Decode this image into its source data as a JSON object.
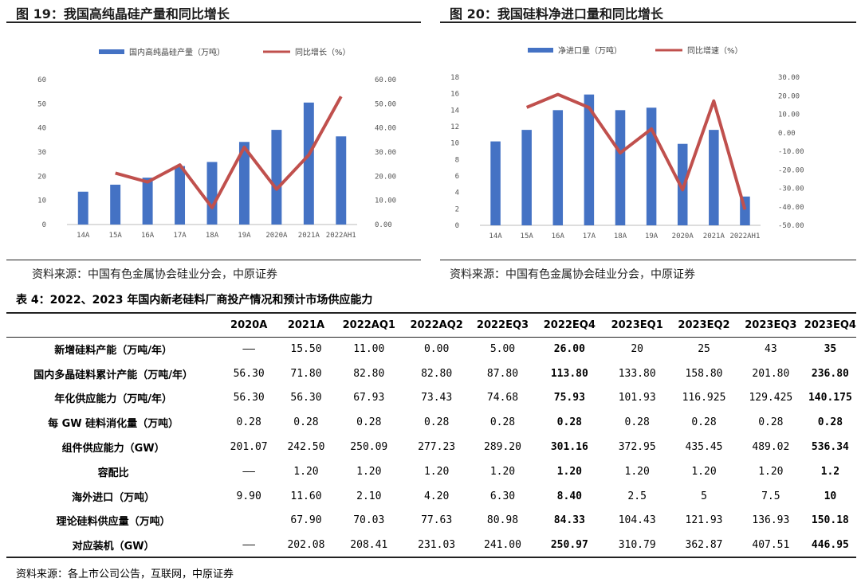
{
  "fig19": {
    "title": "图 19：我国高纯晶硅产量和同比增长",
    "source": "资料来源：中国有色金属协会硅业分会，中原证券"
  },
  "fig20": {
    "title": "图 20：我国硅料净进口量和同比增长",
    "source": "资料来源：中国有色金属协会硅业分会，中原证券"
  },
  "table4": {
    "title": "表 4：2022、2023 年国内新老硅料厂商投产情况和预计市场供应能力",
    "headers": [
      "",
      "2020A",
      "2021A",
      "2022AQ1",
      "2022AQ2",
      "2022EQ3",
      "2022EQ4",
      "2023EQ1",
      "2023EQ2",
      "2023EQ3",
      "2023EQ4"
    ],
    "bold_columns": [
      6,
      10
    ],
    "rows": [
      {
        "label": "新增硅料产能（万吨/年）",
        "cells": [
          "——",
          "15.50",
          "11.00",
          "0.00",
          "5.00",
          "26.00",
          "20",
          "25",
          "43",
          "35"
        ]
      },
      {
        "label": "国内多晶硅料累计产能（万吨/年）",
        "cells": [
          "56.30",
          "71.80",
          "82.80",
          "82.80",
          "87.80",
          "113.80",
          "133.80",
          "158.80",
          "201.80",
          "236.80"
        ]
      },
      {
        "label": "年化供应能力（万吨/年）",
        "cells": [
          "56.30",
          "56.30",
          "67.93",
          "73.43",
          "74.68",
          "75.93",
          "101.93",
          "116.925",
          "129.425",
          "140.175"
        ]
      },
      {
        "label": "每 GW 硅料消化量（万吨）",
        "cells": [
          "0.28",
          "0.28",
          "0.28",
          "0.28",
          "0.28",
          "0.28",
          "0.28",
          "0.28",
          "0.28",
          "0.28"
        ]
      },
      {
        "label": "组件供应能力（GW）",
        "cells": [
          "201.07",
          "242.50",
          "250.09",
          "277.23",
          "289.20",
          "301.16",
          "372.95",
          "435.45",
          "489.02",
          "536.34"
        ]
      },
      {
        "label": "容配比",
        "cells": [
          "——",
          "1.20",
          "1.20",
          "1.20",
          "1.20",
          "1.20",
          "1.20",
          "1.20",
          "1.20",
          "1.2"
        ]
      },
      {
        "label": "海外进口（万吨）",
        "cells": [
          "9.90",
          "11.60",
          "2.10",
          "4.20",
          "6.30",
          "8.40",
          "2.5",
          "5",
          "7.5",
          "10"
        ]
      },
      {
        "label": "理论硅料供应量（万吨）",
        "cells": [
          "",
          "67.90",
          "70.03",
          "77.63",
          "80.98",
          "84.33",
          "104.43",
          "121.93",
          "136.93",
          "150.18"
        ]
      },
      {
        "label": "对应装机（GW）",
        "cells": [
          "——",
          "202.08",
          "208.41",
          "231.03",
          "241.00",
          "250.97",
          "310.79",
          "362.87",
          "407.51",
          "446.95"
        ]
      }
    ],
    "source": "资料来源：各上市公司公告，互联网，中原证券"
  },
  "chart_data": [
    {
      "type": "bar",
      "categories": [
        "14A",
        "15A",
        "16A",
        "17A",
        "18A",
        "19A",
        "2020A",
        "2021A",
        "2022AH1"
      ],
      "series": [
        {
          "name": "国内高纯晶硅产量（万吨）",
          "type": "bar",
          "axis": "left",
          "color": "#4472c4",
          "values": [
            13.6,
            16.5,
            19.4,
            24.2,
            25.9,
            34.2,
            39.2,
            50.5,
            36.5
          ]
        },
        {
          "name": "同比增长（%）",
          "type": "line",
          "axis": "right",
          "color": "#c0504d",
          "values": [
            null,
            21.3,
            17.6,
            24.7,
            7.0,
            32.0,
            14.6,
            28.8,
            53.0
          ]
        }
      ],
      "yleft": {
        "min": 0,
        "max": 60,
        "ticks": [
          "0",
          "10",
          "20",
          "30",
          "40",
          "50",
          "60"
        ]
      },
      "yright": {
        "min": 0,
        "max": 60,
        "ticks": [
          "0.00",
          "10.00",
          "20.00",
          "30.00",
          "40.00",
          "50.00",
          "60.00"
        ]
      },
      "legend": "top-center",
      "grid": false
    },
    {
      "type": "bar",
      "categories": [
        "14A",
        "15A",
        "16A",
        "17A",
        "18A",
        "19A",
        "2020A",
        "2021A",
        "2022AH1"
      ],
      "series": [
        {
          "name": "净进口量（万吨）",
          "type": "bar",
          "axis": "left",
          "color": "#4472c4",
          "values": [
            10.2,
            11.6,
            14.0,
            15.9,
            14.0,
            14.3,
            9.9,
            11.6,
            3.5
          ]
        },
        {
          "name": "同比增速（%）",
          "type": "line",
          "axis": "right",
          "color": "#c0504d",
          "values": [
            null,
            13.7,
            20.7,
            13.6,
            -10.9,
            2.1,
            -30.8,
            17.2,
            -41.5
          ]
        }
      ],
      "yleft": {
        "min": 0,
        "max": 18,
        "ticks": [
          "0",
          "2",
          "4",
          "6",
          "8",
          "10",
          "12",
          "14",
          "16",
          "18"
        ]
      },
      "yright": {
        "min": -50,
        "max": 30,
        "ticks": [
          "-50.00",
          "-40.00",
          "-30.00",
          "-20.00",
          "-10.00",
          "0.00",
          "10.00",
          "20.00",
          "30.00"
        ]
      },
      "legend": "top-center",
      "grid": false
    }
  ]
}
